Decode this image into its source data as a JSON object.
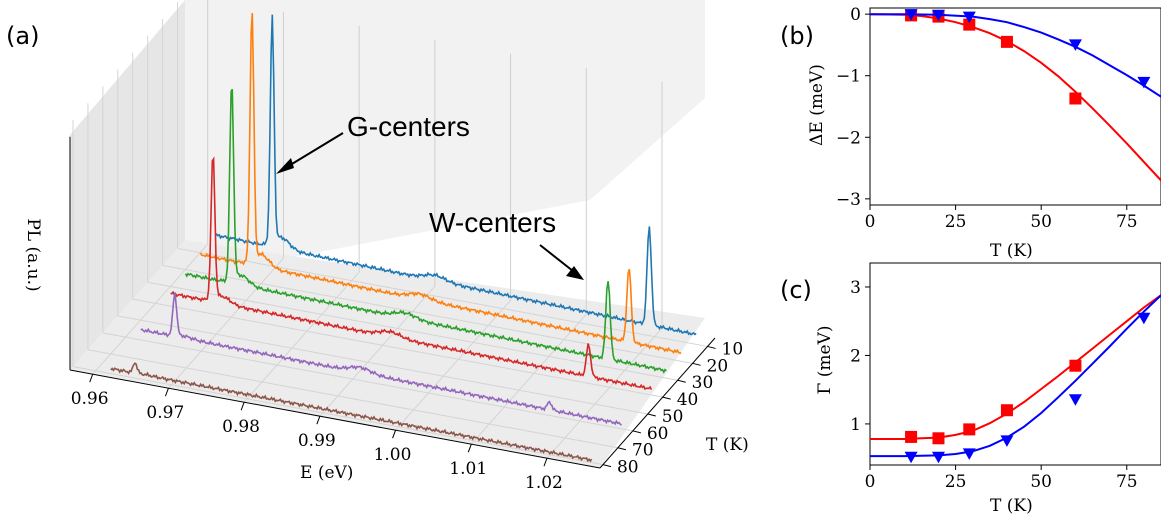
{
  "panels": {
    "a": "(a)",
    "b": "(b)",
    "c": "(c)"
  },
  "chart_data": [
    {
      "panel": "(a)",
      "type": "line",
      "projection": "3d-waterfall",
      "xlabel": "E (eV)",
      "ylabel": "T (K)",
      "zlabel": "PL (a.u.)",
      "x_ticks": [
        "0.96",
        "0.97",
        "0.98",
        "0.99",
        "1.00",
        "1.01",
        "1.02"
      ],
      "y_ticks": [
        "10",
        "20",
        "30",
        "40",
        "50",
        "60",
        "70",
        "80"
      ],
      "xlim": [
        0.957,
        1.027
      ],
      "ylim": [
        5,
        82
      ],
      "annotations": [
        {
          "text": "G-centers",
          "target_E": 0.969,
          "target_T": 10
        },
        {
          "text": "W-centers",
          "target_E": 1.019,
          "target_T": 20
        }
      ],
      "series": [
        {
          "temperature": 10,
          "color": "#1f77b4",
          "baseline": 0.08,
          "g_peak_E": 0.9695,
          "g_peak": 0.85,
          "w_peak_E": 1.0193,
          "w_peak": 0.37
        },
        {
          "temperature": 20,
          "color": "#ff7f0e",
          "baseline": 0.07,
          "g_peak_E": 0.9688,
          "g_peak": 0.95,
          "w_peak_E": 1.0186,
          "w_peak": 0.28
        },
        {
          "temperature": 30,
          "color": "#2ca02c",
          "baseline": 0.06,
          "g_peak_E": 0.9681,
          "g_peak": 0.75,
          "w_peak_E": 1.0178,
          "w_peak": 0.3
        },
        {
          "temperature": 40,
          "color": "#d62728",
          "baseline": 0.05,
          "g_peak_E": 0.9676,
          "g_peak": 0.55,
          "w_peak_E": 1.0172,
          "w_peak": 0.12
        },
        {
          "temperature": 60,
          "color": "#9467bd",
          "baseline": 0.04,
          "g_peak_E": 0.9665,
          "g_peak": 0.16,
          "w_peak_E": 1.016,
          "w_peak": 0.03
        },
        {
          "temperature": 80,
          "color": "#8c564b",
          "baseline": 0.02,
          "g_peak_E": 0.9652,
          "g_peak": 0.04,
          "w_peak_E": 1.015,
          "w_peak": 0.0
        }
      ]
    },
    {
      "panel": "(b)",
      "type": "scatter",
      "xlabel": "T (K)",
      "ylabel": "ΔE (meV)",
      "xlim": [
        0,
        85
      ],
      "ylim": [
        -3.1,
        0.1
      ],
      "x_ticks": [
        "0",
        "25",
        "50",
        "75"
      ],
      "y_ticks": [
        "0",
        "−1",
        "−2",
        "−3"
      ],
      "series": [
        {
          "marker": "square",
          "color": "#ff0000",
          "x": [
            12,
            20,
            29,
            40,
            60
          ],
          "y": [
            -0.02,
            -0.04,
            -0.17,
            -0.45,
            -1.37
          ],
          "fit_x": [
            0,
            10,
            15,
            20,
            25,
            30,
            35,
            40,
            45,
            50,
            55,
            60,
            65,
            70,
            75,
            80,
            85
          ],
          "fit_y": [
            0,
            -0.01,
            -0.03,
            -0.07,
            -0.13,
            -0.21,
            -0.31,
            -0.44,
            -0.6,
            -0.79,
            -1.01,
            -1.26,
            -1.53,
            -1.81,
            -2.1,
            -2.4,
            -2.7
          ]
        },
        {
          "marker": "triangle-down",
          "color": "#0000ff",
          "x": [
            12,
            20,
            29,
            60,
            80
          ],
          "y": [
            0.0,
            -0.01,
            -0.04,
            -0.49,
            -1.1
          ],
          "fit_x": [
            0,
            10,
            20,
            30,
            35,
            40,
            45,
            50,
            55,
            60,
            65,
            70,
            75,
            80,
            85
          ],
          "fit_y": [
            0,
            0,
            -0.01,
            -0.04,
            -0.08,
            -0.13,
            -0.21,
            -0.3,
            -0.41,
            -0.53,
            -0.67,
            -0.83,
            -0.99,
            -1.16,
            -1.34
          ]
        }
      ]
    },
    {
      "panel": "(c)",
      "type": "scatter",
      "xlabel": "T (K)",
      "ylabel": "Γ (meV)",
      "xlim": [
        0,
        85
      ],
      "ylim": [
        0.4,
        3.35
      ],
      "x_ticks": [
        "0",
        "25",
        "50",
        "75"
      ],
      "y_ticks": [
        "1",
        "2",
        "3"
      ],
      "series": [
        {
          "marker": "square",
          "color": "#ff0000",
          "x": [
            12,
            20,
            29,
            40,
            60
          ],
          "y": [
            0.81,
            0.79,
            0.92,
            1.2,
            1.85
          ],
          "fit_x": [
            0,
            10,
            15,
            20,
            25,
            30,
            35,
            40,
            45,
            50,
            55,
            60,
            65,
            70,
            75,
            80,
            85
          ],
          "fit_y": [
            0.78,
            0.78,
            0.79,
            0.8,
            0.84,
            0.9,
            1.01,
            1.15,
            1.32,
            1.51,
            1.7,
            1.9,
            2.1,
            2.3,
            2.5,
            2.7,
            2.88
          ]
        },
        {
          "marker": "triangle-down",
          "color": "#0000ff",
          "x": [
            12,
            20,
            29,
            40,
            60,
            80
          ],
          "y": [
            0.52,
            0.52,
            0.57,
            0.76,
            1.36,
            2.55
          ],
          "fit_x": [
            0,
            10,
            20,
            25,
            30,
            35,
            40,
            45,
            50,
            55,
            60,
            65,
            70,
            75,
            80,
            85
          ],
          "fit_y": [
            0.53,
            0.53,
            0.54,
            0.56,
            0.6,
            0.68,
            0.8,
            0.96,
            1.16,
            1.39,
            1.63,
            1.88,
            2.13,
            2.39,
            2.64,
            2.88
          ]
        }
      ]
    }
  ]
}
